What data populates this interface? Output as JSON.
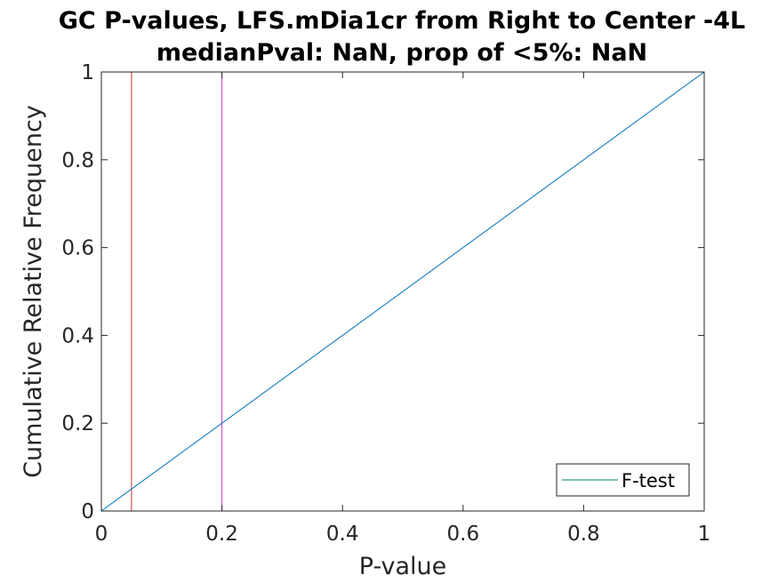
{
  "chart_data": {
    "type": "line",
    "title_lines": [
      "GC P-values, LFS.mDia1cr from Right to Center -4L",
      "medianPval: NaN, prop of <5%: NaN"
    ],
    "xlabel": "P-value",
    "ylabel": "Cumulative Relative Frequency",
    "xlim": [
      0,
      1
    ],
    "ylim": [
      0,
      1
    ],
    "xticks": [
      0,
      0.2,
      0.4,
      0.6,
      0.8,
      1
    ],
    "xtick_labels": [
      "0",
      "0.2",
      "0.4",
      "0.6",
      "0.8",
      "1"
    ],
    "yticks": [
      0,
      0.2,
      0.4,
      0.6,
      0.8,
      1
    ],
    "ytick_labels": [
      "0",
      "0.2",
      "0.4",
      "0.6",
      "0.8",
      "1"
    ],
    "grid": false,
    "series": [
      {
        "name": "F-test",
        "x": [
          0,
          1
        ],
        "y": [
          0,
          1
        ],
        "color": "#0072bd"
      }
    ],
    "reference_lines": [
      {
        "x": 0.05,
        "color": "#c0392b"
      },
      {
        "x": 0.2,
        "color": "#c03bd0"
      }
    ],
    "legend": {
      "placement": "bottom-right",
      "entries": [
        "F-test"
      ],
      "line_color": "#00846b"
    }
  }
}
